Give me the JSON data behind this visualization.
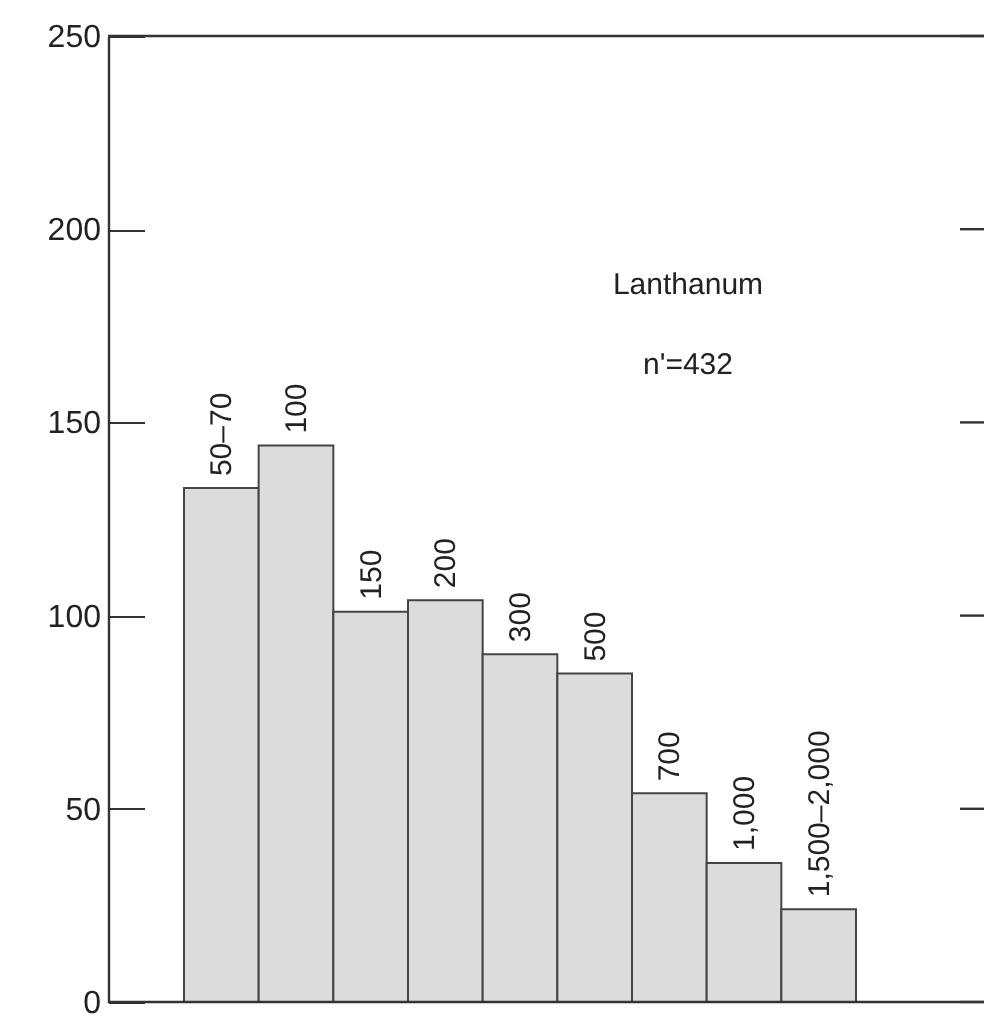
{
  "chart_data": {
    "type": "bar",
    "categories": [
      "50–70",
      "100",
      "150",
      "200",
      "300",
      "500",
      "700",
      "1,000",
      "1,500–2,000"
    ],
    "values": [
      133,
      144,
      101,
      104,
      90,
      85,
      54,
      36,
      24
    ],
    "color": "#dcdcdc",
    "ylim": [
      0,
      250
    ],
    "yticks": [
      0,
      50,
      100,
      150,
      200,
      250
    ],
    "grid": false,
    "annotations": [
      "Lanthanum",
      "n'=432"
    ]
  }
}
